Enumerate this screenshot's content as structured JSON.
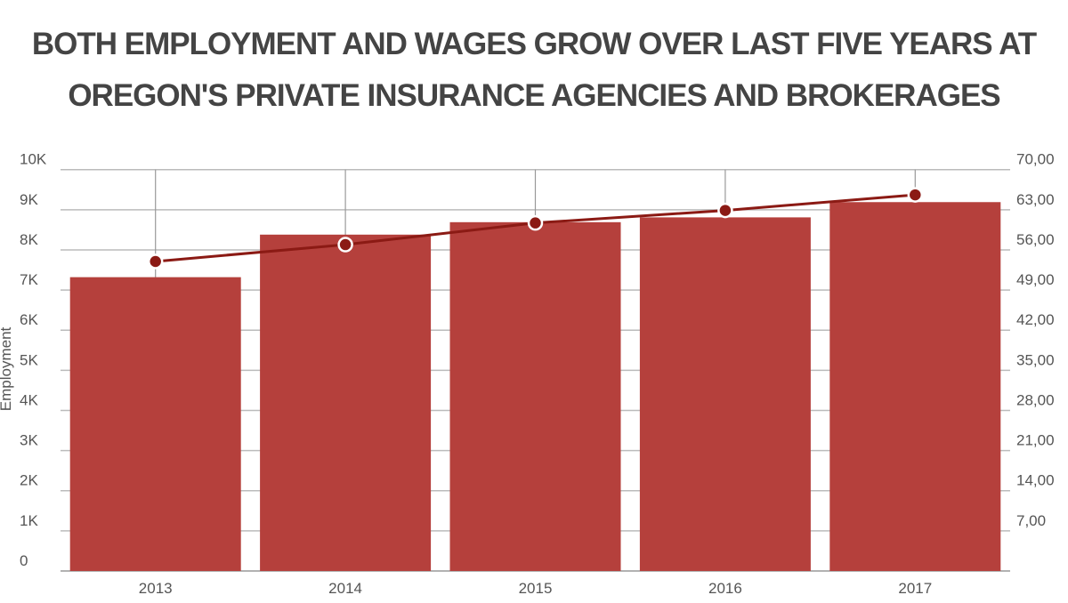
{
  "title_lines": [
    "BOTH EMPLOYMENT AND WAGES GROW OVER LAST FIVE YEARS AT",
    "OREGON'S PRIVATE INSURANCE AGENCIES AND BROKERAGES"
  ],
  "chart_data": {
    "type": "bar+line",
    "title": "BOTH EMPLOYMENT AND WAGES GROW OVER LAST FIVE YEARS AT OREGON'S PRIVATE INSURANCE AGENCIES AND BROKERAGES",
    "categories": [
      "2013",
      "2014",
      "2015",
      "2016",
      "2017"
    ],
    "series": [
      {
        "kind": "bar",
        "axis": "left",
        "values": [
          7320,
          8380,
          8690,
          8810,
          9190
        ],
        "color": "#b5403c"
      },
      {
        "kind": "line",
        "axis": "right",
        "values": [
          53980,
          56920,
          60700,
          62880,
          65600
        ],
        "color": "#8b1a14"
      }
    ],
    "ylabel": "Employment",
    "ylim": [
      0,
      10000
    ],
    "yticks": [
      "0",
      "1K",
      "2K",
      "3K",
      "4K",
      "5K",
      "6K",
      "7K",
      "8K",
      "9K",
      "10K"
    ],
    "y2lim": [
      0,
      70000
    ],
    "y2ticks": [
      "",
      "7,00",
      "14,00",
      "21,00",
      "28,00",
      "35,00",
      "42,00",
      "49,00",
      "56,00",
      "63,00",
      "70,00"
    ],
    "grid": true,
    "legend": "none"
  }
}
